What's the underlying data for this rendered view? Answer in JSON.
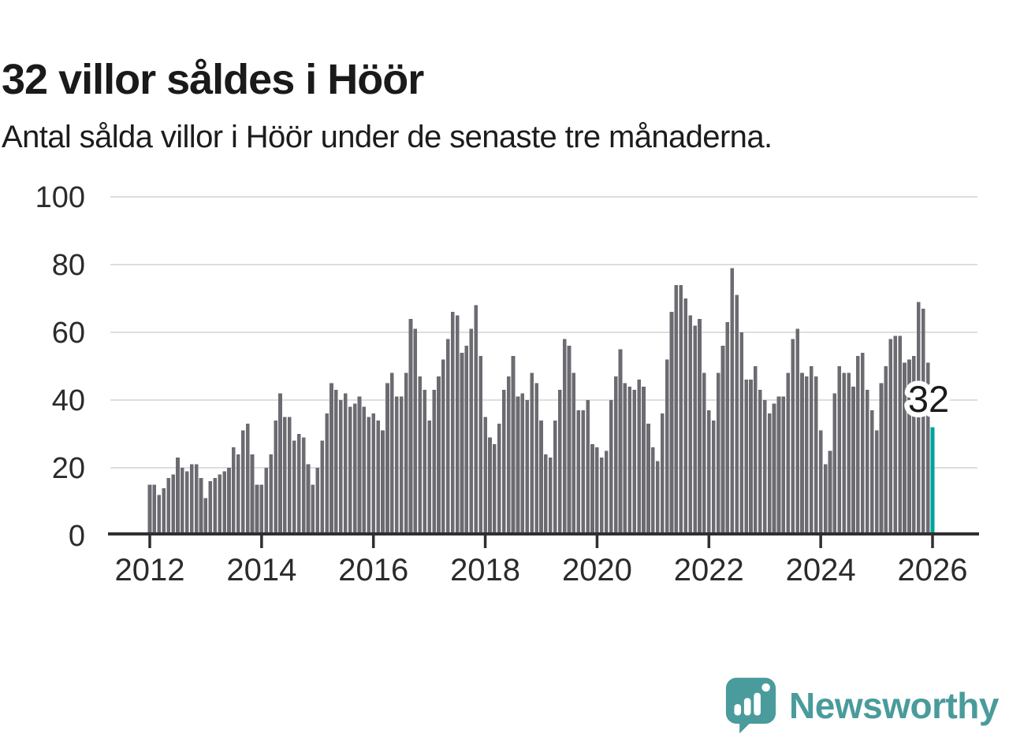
{
  "title": "32 villor såldes i Höör",
  "subtitle": "Antal sålda villor i Höör under de senaste tre månaderna.",
  "logo": {
    "text": "Newsworthy",
    "icon": "newsworthy-bar-chart-bubble-icon"
  },
  "colors": {
    "background": "#ffffff",
    "bar": "#6b6b71",
    "highlight": "#00a49c",
    "logo_teal": "#4a9b9b",
    "gridline": "#dedede",
    "axis": "#2f2f2f",
    "text": "#1a1a1a",
    "tick_label": "#2b2b2b"
  },
  "chart_data": {
    "type": "bar",
    "title": "32 villor såldes i Höör",
    "subtitle": "Antal sålda villor i Höör under de senaste tre månaderna.",
    "xlabel": "",
    "ylabel": "",
    "ylim": [
      0,
      100
    ],
    "y_ticks": [
      0,
      20,
      40,
      60,
      80,
      100
    ],
    "x_tick_labels": [
      "2012",
      "2014",
      "2016",
      "2018",
      "2020",
      "2022",
      "2024",
      "2026"
    ],
    "x_tick_years": [
      2012,
      2014,
      2016,
      2018,
      2020,
      2022,
      2024,
      2026
    ],
    "grid": "horizontal",
    "legend": "none",
    "frequency": "monthly",
    "start_month": "2012-01",
    "end_month": "2026-01",
    "values": [
      15,
      15,
      12,
      14,
      17,
      18,
      23,
      20,
      19,
      21,
      21,
      17,
      11,
      16,
      17,
      18,
      19,
      20,
      26,
      24,
      31,
      33,
      24,
      15,
      15,
      20,
      24,
      34,
      42,
      35,
      35,
      28,
      30,
      29,
      21,
      15,
      20,
      28,
      36,
      45,
      43,
      40,
      42,
      38,
      39,
      41,
      38,
      35,
      36,
      34,
      31,
      45,
      48,
      41,
      41,
      48,
      64,
      61,
      47,
      43,
      34,
      43,
      47,
      52,
      58,
      66,
      65,
      54,
      56,
      61,
      68,
      53,
      35,
      29,
      27,
      33,
      43,
      47,
      53,
      41,
      42,
      40,
      48,
      45,
      34,
      24,
      23,
      34,
      43,
      58,
      56,
      48,
      37,
      37,
      40,
      27,
      26,
      23,
      25,
      40,
      47,
      55,
      45,
      44,
      43,
      46,
      44,
      33,
      26,
      22,
      36,
      52,
      66,
      74,
      74,
      70,
      65,
      62,
      64,
      48,
      37,
      34,
      48,
      56,
      63,
      79,
      71,
      60,
      46,
      46,
      50,
      43,
      40,
      36,
      39,
      41,
      41,
      48,
      58,
      61,
      48,
      47,
      50,
      47,
      31,
      21,
      25,
      42,
      50,
      48,
      48,
      44,
      53,
      54,
      43,
      37,
      31,
      45,
      50,
      58,
      59,
      59,
      51,
      52,
      53,
      69,
      67,
      51,
      32
    ],
    "highlight": {
      "index": 168,
      "value": 32,
      "label": "32",
      "color": "#00a49c"
    }
  }
}
